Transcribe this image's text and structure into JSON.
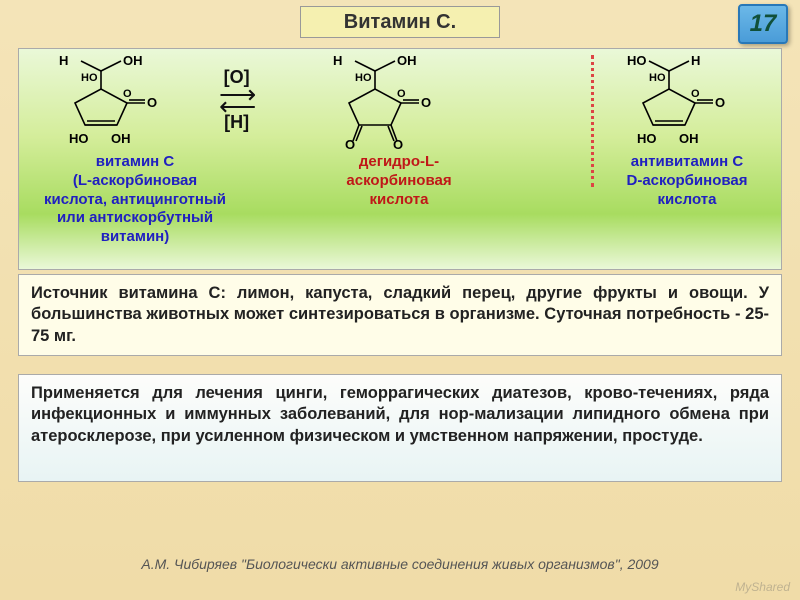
{
  "page": {
    "title": "Витамин С.",
    "number": "17"
  },
  "chemistry": {
    "oxidation_label": "[O]",
    "reduction_label": "[H]",
    "molecules": [
      {
        "caption": "витамин С\n(L-аскорбиновая\nкислота, антицинготный\nили антискорбутный\nвитамин)",
        "color": "#2020c0"
      },
      {
        "caption": "дегидро-L-\nаскорбиновая\nкислота",
        "color": "#c01818"
      },
      {
        "caption": "антивитамин С\nD-аскорбиновая\nкислота",
        "color": "#2020c0"
      }
    ]
  },
  "source_text": "Источник витамина С: лимон, капуста, сладкий перец, другие фрукты и овощи. У большинства животных может синтезироваться в организме. Суточная потребность - 25-75 мг.",
  "use_text": "Применяется для лечения цинги, геморрагических диатезов, крово-течениях, ряда инфекционных и иммунных заболеваний, для нор-мализации липидного обмена при атеросклерозе, при усиленном физическом и умственном напряжении, простуде.",
  "footer": "А.М. Чибиряев \"Биологически активные соединения живых организмов\", 2009",
  "watermark": "MyShared"
}
